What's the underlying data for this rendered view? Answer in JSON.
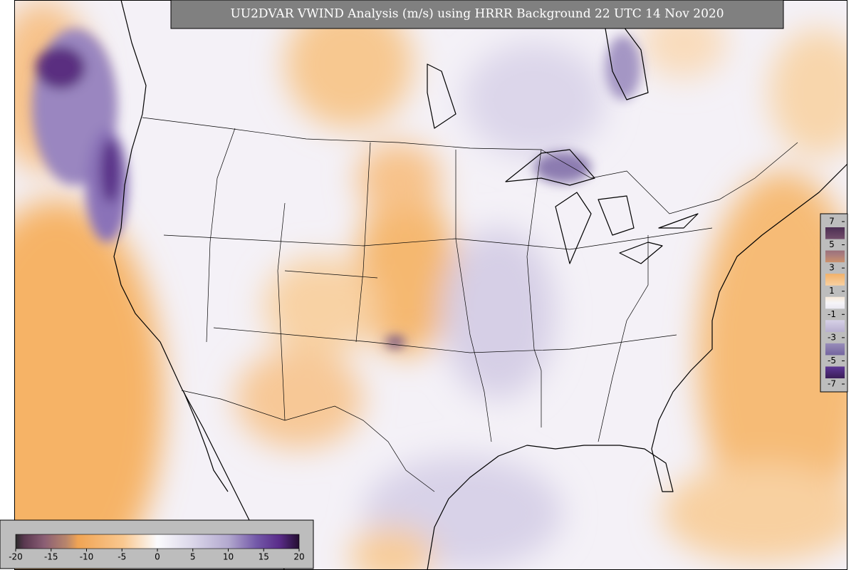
{
  "title": "UU2DVAR VWIND Analysis (m/s) using HRRR Background 22 UTC 14 Nov 2020",
  "colorbars": [
    {
      "ticks": [
        7,
        5,
        3,
        1,
        -1,
        -3,
        -5,
        -7
      ],
      "lim": [
        -7,
        7
      ]
    },
    {
      "ticks": [
        -20,
        -15,
        -10,
        -5,
        0,
        5,
        10,
        15,
        20
      ],
      "lim": [
        -20,
        20
      ]
    }
  ]
}
